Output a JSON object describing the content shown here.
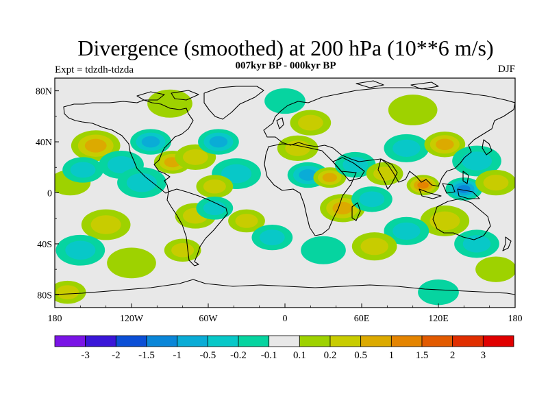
{
  "title": "Divergence (smoothed) at 200 hPa (10**6 m/s)",
  "subtitle": "007kyr BP - 000kyr BP",
  "expt_label": "Expt = tdzdh-tdzda",
  "season": "DJF",
  "lat_labels": [
    "80N",
    "40N",
    "0",
    "40S",
    "80S"
  ],
  "lon_labels": [
    "180",
    "120W",
    "60W",
    "0",
    "60E",
    "120E",
    "180"
  ],
  "colorbar": {
    "labels": [
      "-3",
      "-2",
      "-1.5",
      "-1",
      "-0.5",
      "-0.2",
      "-0.1",
      "0.1",
      "0.2",
      "0.5",
      "1",
      "1.5",
      "2",
      "3"
    ],
    "colors": [
      "#7a14e6",
      "#3a16d8",
      "#0b4fd6",
      "#0a86d8",
      "#0aacd6",
      "#08c8c8",
      "#06d4a0",
      "#e8e8e8",
      "#9ed200",
      "#c8cc00",
      "#dcaa00",
      "#e48400",
      "#e25a00",
      "#e02e00",
      "#e00000"
    ]
  },
  "chart_data": {
    "type": "heatmap",
    "title": "Divergence (smoothed) at 200 hPa (10**6 m/s)",
    "units": "10**6 m/s",
    "x_range": [
      -180,
      180
    ],
    "y_range": [
      -90,
      90
    ],
    "contour_levels": [
      -3,
      -2,
      -1.5,
      -1,
      -0.5,
      -0.2,
      -0.1,
      0.1,
      0.2,
      0.5,
      1,
      1.5,
      2,
      3
    ],
    "field_blobs": [
      {
        "lon": -148,
        "lat": 37,
        "value": 0.8,
        "r": 12
      },
      {
        "lon": -168,
        "lat": 8,
        "value": 0.3,
        "r": 10
      },
      {
        "lon": -158,
        "lat": 18,
        "value": -0.4,
        "r": 10
      },
      {
        "lon": -128,
        "lat": 22,
        "value": -0.5,
        "r": 11
      },
      {
        "lon": -105,
        "lat": 40,
        "value": -0.7,
        "r": 10
      },
      {
        "lon": -112,
        "lat": 8,
        "value": -0.4,
        "r": 12
      },
      {
        "lon": -88,
        "lat": 24,
        "value": 0.9,
        "r": 9
      },
      {
        "lon": -70,
        "lat": 28,
        "value": 0.6,
        "r": 10
      },
      {
        "lon": -52,
        "lat": 40,
        "value": -0.8,
        "r": 10
      },
      {
        "lon": -38,
        "lat": 15,
        "value": -0.5,
        "r": 12
      },
      {
        "lon": -55,
        "lat": 5,
        "value": 0.4,
        "r": 9
      },
      {
        "lon": -70,
        "lat": -18,
        "value": 0.4,
        "r": 10
      },
      {
        "lon": -55,
        "lat": -12,
        "value": -0.6,
        "r": 9
      },
      {
        "lon": -30,
        "lat": -22,
        "value": 0.6,
        "r": 9
      },
      {
        "lon": -80,
        "lat": -45,
        "value": 0.4,
        "r": 9
      },
      {
        "lon": -140,
        "lat": -25,
        "value": 0.5,
        "r": 12
      },
      {
        "lon": -160,
        "lat": -45,
        "value": -0.5,
        "r": 12
      },
      {
        "lon": -120,
        "lat": -55,
        "value": 0.3,
        "r": 12
      },
      {
        "lon": -10,
        "lat": -35,
        "value": -0.5,
        "r": 10
      },
      {
        "lon": 10,
        "lat": 35,
        "value": 0.4,
        "r": 10
      },
      {
        "lon": 20,
        "lat": 55,
        "value": 0.4,
        "r": 10
      },
      {
        "lon": 18,
        "lat": 14,
        "value": -0.8,
        "r": 10
      },
      {
        "lon": 35,
        "lat": 12,
        "value": 0.8,
        "r": 8
      },
      {
        "lon": 55,
        "lat": 22,
        "value": -0.6,
        "r": 10
      },
      {
        "lon": 45,
        "lat": -12,
        "value": 0.7,
        "r": 11
      },
      {
        "lon": 68,
        "lat": -5,
        "value": -0.5,
        "r": 10
      },
      {
        "lon": 78,
        "lat": 15,
        "value": 0.4,
        "r": 9
      },
      {
        "lon": 95,
        "lat": 35,
        "value": -0.4,
        "r": 11
      },
      {
        "lon": 108,
        "lat": 6,
        "value": 1.6,
        "r": 8
      },
      {
        "lon": 125,
        "lat": 38,
        "value": 0.7,
        "r": 10
      },
      {
        "lon": 140,
        "lat": 3,
        "value": -1.6,
        "r": 9
      },
      {
        "lon": 150,
        "lat": 25,
        "value": -0.5,
        "r": 12
      },
      {
        "lon": 165,
        "lat": 8,
        "value": 0.4,
        "r": 10
      },
      {
        "lon": 125,
        "lat": -22,
        "value": 0.5,
        "r": 12
      },
      {
        "lon": 95,
        "lat": -30,
        "value": -0.6,
        "r": 11
      },
      {
        "lon": 150,
        "lat": -40,
        "value": -0.4,
        "r": 11
      },
      {
        "lon": 70,
        "lat": -42,
        "value": 0.4,
        "r": 11
      },
      {
        "lon": 30,
        "lat": -45,
        "value": -0.3,
        "r": 11
      },
      {
        "lon": 165,
        "lat": -60,
        "value": 0.3,
        "r": 10
      },
      {
        "lon": 100,
        "lat": 65,
        "value": 0.3,
        "r": 12
      },
      {
        "lon": -90,
        "lat": 70,
        "value": 0.3,
        "r": 11
      },
      {
        "lon": 0,
        "lat": 72,
        "value": -0.3,
        "r": 10
      },
      {
        "lon": -170,
        "lat": -78,
        "value": 0.4,
        "r": 9
      },
      {
        "lon": 120,
        "lat": -78,
        "value": -0.3,
        "r": 10
      }
    ]
  }
}
